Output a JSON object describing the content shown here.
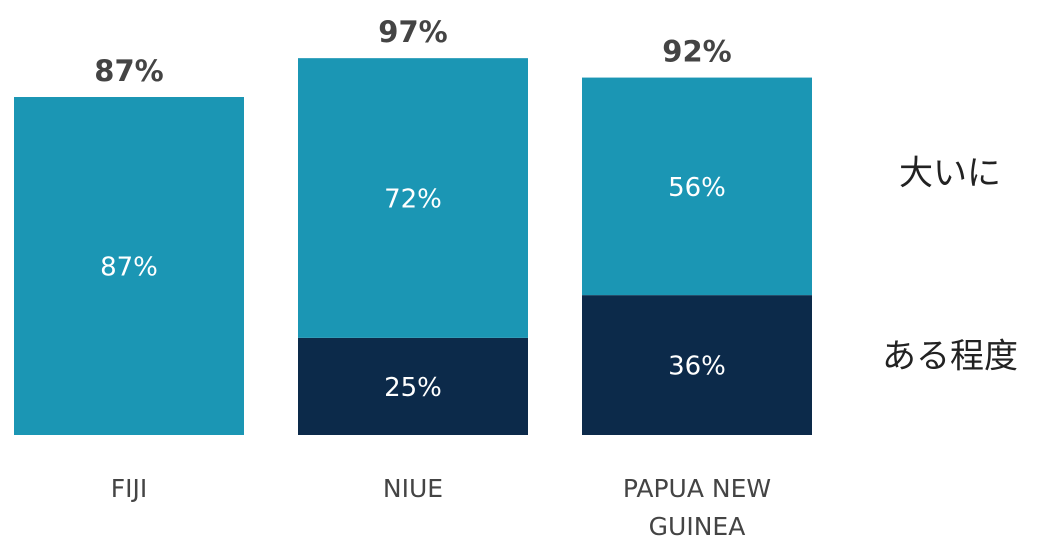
{
  "chart_data": {
    "type": "stacked_bar",
    "categories": [
      "FIJI",
      "NIUE",
      "PAPUA NEW GUINEA"
    ],
    "series": [
      {
        "name": "ある程度",
        "color": "#0c2a4a",
        "values": [
          null,
          25,
          36
        ]
      },
      {
        "name": "大いに",
        "color": "#1b96b4",
        "values": [
          87,
          72,
          56
        ]
      }
    ],
    "totals": [
      87,
      97,
      92
    ],
    "value_labels": {
      "series": [
        [
          null,
          "25%",
          "36%"
        ],
        [
          "87%",
          "72%",
          "56%"
        ]
      ],
      "totals": [
        "87%",
        "97%",
        "92%"
      ]
    }
  }
}
